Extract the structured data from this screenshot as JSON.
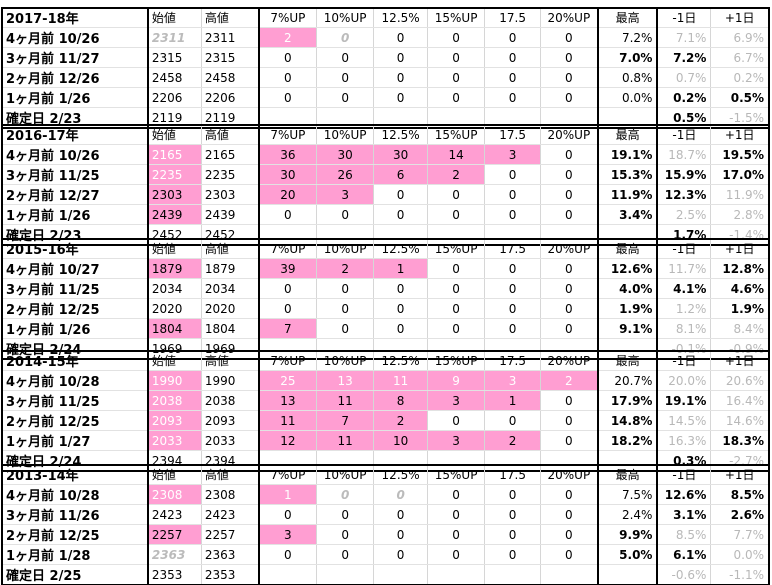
{
  "headers": [
    "始値",
    "高値",
    "7%UP",
    "10%UP",
    "12.5%",
    "15%UP",
    "17.5",
    "20%UP",
    "最高",
    "-1日",
    "+1日"
  ],
  "pink": "#ff9ed2",
  "blocks": [
    {
      "title": "2017-18年",
      "rows": [
        {
          "label": "4ヶ月前  10/26",
          "cells": [
            "2311",
            "2311",
            "2",
            "0",
            "0",
            "0",
            "0",
            "0",
            "7.2%",
            "7.1%",
            "6.9%"
          ],
          "styles": [
            "ital",
            "",
            "pw",
            "ital",
            "",
            "",
            "",
            "",
            "pct",
            "pct grey",
            "pct grey"
          ]
        },
        {
          "label": "3ヶ月前  11/27",
          "cells": [
            "2315",
            "2315",
            "0",
            "0",
            "0",
            "0",
            "0",
            "0",
            "7.0%",
            "7.2%",
            "6.7%"
          ],
          "styles": [
            "",
            "",
            "",
            "",
            "",
            "",
            "",
            "",
            "pct bold",
            "pct bold",
            "pct grey"
          ]
        },
        {
          "label": "2ヶ月前  12/26",
          "cells": [
            "2458",
            "2458",
            "0",
            "0",
            "0",
            "0",
            "0",
            "0",
            "0.8%",
            "0.7%",
            "0.2%"
          ],
          "styles": [
            "",
            "",
            "",
            "",
            "",
            "",
            "",
            "",
            "pct",
            "pct grey",
            "pct grey"
          ]
        },
        {
          "label": "1ヶ月前   1/26",
          "cells": [
            "2206",
            "2206",
            "0",
            "0",
            "0",
            "0",
            "0",
            "0",
            "0.0%",
            "0.2%",
            "0.5%"
          ],
          "styles": [
            "",
            "",
            "",
            "",
            "",
            "",
            "",
            "",
            "pct",
            "pct bold",
            "pct bold"
          ]
        },
        {
          "label": "確定日   2/23",
          "cells": [
            "2119",
            "2119",
            "",
            "",
            "",
            "",
            "",
            "",
            "",
            "0.5%",
            "-1.5%"
          ],
          "styles": [
            "",
            "",
            "",
            "",
            "",
            "",
            "",
            "",
            "pct",
            "pct bold",
            "pct grey"
          ]
        }
      ]
    },
    {
      "title": "2016-17年",
      "rows": [
        {
          "label": "4ヶ月前  10/26",
          "cells": [
            "2165",
            "2165",
            "36",
            "30",
            "30",
            "14",
            "3",
            "0",
            "19.1%",
            "18.7%",
            "19.5%"
          ],
          "styles": [
            "pw",
            "",
            "pink",
            "pink",
            "pink",
            "pink",
            "pink",
            "",
            "pct bold",
            "pct grey",
            "pct bold"
          ]
        },
        {
          "label": "3ヶ月前  11/25",
          "cells": [
            "2235",
            "2235",
            "30",
            "26",
            "6",
            "2",
            "0",
            "0",
            "15.3%",
            "15.9%",
            "17.0%"
          ],
          "styles": [
            "pw",
            "",
            "pink",
            "pink",
            "pink",
            "pink",
            "",
            "",
            "pct bold",
            "pct bold",
            "pct bold"
          ]
        },
        {
          "label": "2ヶ月前  12/27",
          "cells": [
            "2303",
            "2303",
            "20",
            "3",
            "0",
            "0",
            "0",
            "0",
            "11.9%",
            "12.3%",
            "11.9%"
          ],
          "styles": [
            "pink",
            "",
            "pink",
            "pink",
            "",
            "",
            "",
            "",
            "pct bold",
            "pct bold",
            "pct grey"
          ]
        },
        {
          "label": "1ヶ月前   1/26",
          "cells": [
            "2439",
            "2439",
            "0",
            "0",
            "0",
            "0",
            "0",
            "0",
            "3.4%",
            "2.5%",
            "2.8%"
          ],
          "styles": [
            "pink",
            "",
            "",
            "",
            "",
            "",
            "",
            "",
            "pct bold",
            "pct grey",
            "pct grey"
          ]
        },
        {
          "label": "確定日   2/23",
          "cells": [
            "2452",
            "2452",
            "",
            "",
            "",
            "",
            "",
            "",
            "",
            "1.7%",
            "-1.4%"
          ],
          "styles": [
            "",
            "",
            "",
            "",
            "",
            "",
            "",
            "",
            "pct",
            "pct bold",
            "pct grey"
          ]
        }
      ]
    },
    {
      "title": "2015-16年",
      "rows": [
        {
          "label": "4ヶ月前  10/27",
          "cells": [
            "1879",
            "1879",
            "39",
            "2",
            "1",
            "0",
            "0",
            "0",
            "12.6%",
            "11.7%",
            "12.8%"
          ],
          "styles": [
            "pink",
            "",
            "pink",
            "pink",
            "pink",
            "",
            "",
            "",
            "pct bold",
            "pct grey",
            "pct bold"
          ]
        },
        {
          "label": "3ヶ月前  11/25",
          "cells": [
            "2034",
            "2034",
            "0",
            "0",
            "0",
            "0",
            "0",
            "0",
            "4.0%",
            "4.1%",
            "4.6%"
          ],
          "styles": [
            "",
            "",
            "",
            "",
            "",
            "",
            "",
            "",
            "pct bold",
            "pct bold",
            "pct bold"
          ]
        },
        {
          "label": "2ヶ月前  12/25",
          "cells": [
            "2020",
            "2020",
            "0",
            "0",
            "0",
            "0",
            "0",
            "0",
            "1.9%",
            "1.2%",
            "1.9%"
          ],
          "styles": [
            "",
            "",
            "",
            "",
            "",
            "",
            "",
            "",
            "pct bold",
            "pct grey",
            "pct bold"
          ]
        },
        {
          "label": "1ヶ月前   1/26",
          "cells": [
            "1804",
            "1804",
            "7",
            "0",
            "0",
            "0",
            "0",
            "0",
            "9.1%",
            "8.1%",
            "8.4%"
          ],
          "styles": [
            "pink",
            "",
            "pink",
            "",
            "",
            "",
            "",
            "",
            "pct bold",
            "pct grey",
            "pct grey"
          ]
        },
        {
          "label": "確定日   2/24",
          "cells": [
            "1969",
            "1969",
            "",
            "",
            "",
            "",
            "",
            "",
            "",
            "-0.1%",
            "-0.9%"
          ],
          "styles": [
            "",
            "",
            "",
            "",
            "",
            "",
            "",
            "",
            "pct",
            "pct grey",
            "pct grey"
          ]
        }
      ]
    },
    {
      "title": "2014-15年",
      "rows": [
        {
          "label": "4ヶ月前  10/28",
          "cells": [
            "1990",
            "1990",
            "25",
            "13",
            "11",
            "9",
            "3",
            "2",
            "20.7%",
            "20.0%",
            "20.6%"
          ],
          "styles": [
            "pw",
            "",
            "pw",
            "pw",
            "pw",
            "pw",
            "pw",
            "pw",
            "pct",
            "pct grey",
            "pct grey"
          ]
        },
        {
          "label": "3ヶ月前  11/25",
          "cells": [
            "2038",
            "2038",
            "13",
            "11",
            "8",
            "3",
            "1",
            "0",
            "17.9%",
            "19.1%",
            "16.4%"
          ],
          "styles": [
            "pw",
            "",
            "pink",
            "pink",
            "pink",
            "pink",
            "pink",
            "",
            "pct bold",
            "pct bold",
            "pct grey"
          ]
        },
        {
          "label": "2ヶ月前  12/25",
          "cells": [
            "2093",
            "2093",
            "11",
            "7",
            "2",
            "0",
            "0",
            "0",
            "14.8%",
            "14.5%",
            "14.6%"
          ],
          "styles": [
            "pw",
            "",
            "pink",
            "pink",
            "pink",
            "",
            "",
            "",
            "pct bold",
            "pct grey",
            "pct grey"
          ]
        },
        {
          "label": "1ヶ月前   1/27",
          "cells": [
            "2033",
            "2033",
            "12",
            "11",
            "10",
            "3",
            "2",
            "0",
            "18.2%",
            "16.3%",
            "18.3%"
          ],
          "styles": [
            "pw",
            "",
            "pink",
            "pink",
            "pink",
            "pink",
            "pink",
            "",
            "pct bold",
            "pct grey",
            "pct bold"
          ]
        },
        {
          "label": "確定日   2/24",
          "cells": [
            "2394",
            "2394",
            "",
            "",
            "",
            "",
            "",
            "",
            "",
            "0.3%",
            "-2.7%"
          ],
          "styles": [
            "",
            "",
            "",
            "",
            "",
            "",
            "",
            "",
            "pct",
            "pct bold",
            "pct grey"
          ]
        }
      ]
    },
    {
      "title": "2013-14年",
      "rows": [
        {
          "label": "4ヶ月前  10/28",
          "cells": [
            "2308",
            "2308",
            "1",
            "0",
            "0",
            "0",
            "0",
            "0",
            "7.5%",
            "12.6%",
            "8.5%"
          ],
          "styles": [
            "pw",
            "",
            "pw",
            "ital",
            "ital",
            "",
            "",
            "",
            "pct",
            "pct bold",
            "pct bold"
          ]
        },
        {
          "label": "3ヶ月前  11/26",
          "cells": [
            "2423",
            "2423",
            "0",
            "0",
            "0",
            "0",
            "0",
            "0",
            "2.4%",
            "3.1%",
            "2.6%"
          ],
          "styles": [
            "",
            "",
            "",
            "",
            "",
            "",
            "",
            "",
            "pct",
            "pct bold",
            "pct bold"
          ]
        },
        {
          "label": "2ヶ月前  12/25",
          "cells": [
            "2257",
            "2257",
            "3",
            "0",
            "0",
            "0",
            "0",
            "0",
            "9.9%",
            "8.5%",
            "7.7%"
          ],
          "styles": [
            "pink",
            "",
            "pink",
            "",
            "",
            "",
            "",
            "",
            "pct bold",
            "pct grey",
            "pct grey"
          ]
        },
        {
          "label": "1ヶ月前   1/28",
          "cells": [
            "2363",
            "2363",
            "0",
            "0",
            "0",
            "0",
            "0",
            "0",
            "5.0%",
            "6.1%",
            "0.0%"
          ],
          "styles": [
            "ital",
            "",
            "",
            "",
            "",
            "",
            "",
            "",
            "pct bold",
            "pct bold",
            "pct grey"
          ]
        },
        {
          "label": "確定日   2/25",
          "cells": [
            "2353",
            "2353",
            "",
            "",
            "",
            "",
            "",
            "",
            "",
            "-0.6%",
            "-1.1%"
          ],
          "styles": [
            "",
            "",
            "",
            "",
            "",
            "",
            "",
            "",
            "pct",
            "pct grey",
            "pct grey"
          ]
        }
      ]
    }
  ]
}
